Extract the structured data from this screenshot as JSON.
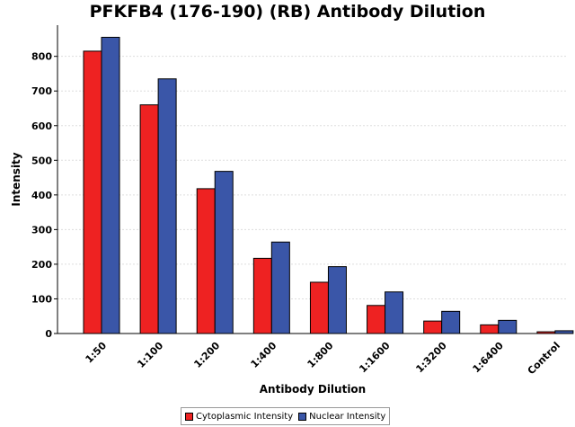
{
  "chart_data": {
    "type": "bar",
    "title": "PFKFB4 (176-190) (RB) Antibody Dilution",
    "xlabel": "Antibody Dilution",
    "ylabel": "Intensity",
    "categories": [
      "1:50",
      "1:100",
      "1:200",
      "1:400",
      "1:800",
      "1:1600",
      "1:3200",
      "1:6400",
      "Control"
    ],
    "series": [
      {
        "name": "Cytoplasmic Intensity",
        "color": "#ee2222",
        "values": [
          815,
          660,
          418,
          217,
          148,
          81,
          36,
          25,
          5
        ]
      },
      {
        "name": "Nuclear Intensity",
        "color": "#3a56a8",
        "values": [
          855,
          735,
          468,
          264,
          193,
          120,
          64,
          38,
          8
        ]
      }
    ],
    "ylim": [
      0,
      890
    ],
    "yticks": [
      0,
      100,
      200,
      300,
      400,
      500,
      600,
      700,
      800
    ],
    "grid": true,
    "legend": "bottom"
  }
}
